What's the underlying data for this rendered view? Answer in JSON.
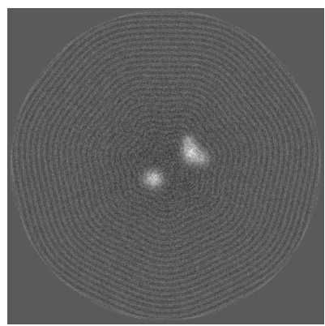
{
  "image": {
    "subject": "reconstruction-slice",
    "colors": {
      "outer_background": "#ffffff",
      "field_background": "#5a5a5a",
      "disc_mid": "#5f5f5f",
      "blob_highlight": "#e6e6e6"
    }
  }
}
